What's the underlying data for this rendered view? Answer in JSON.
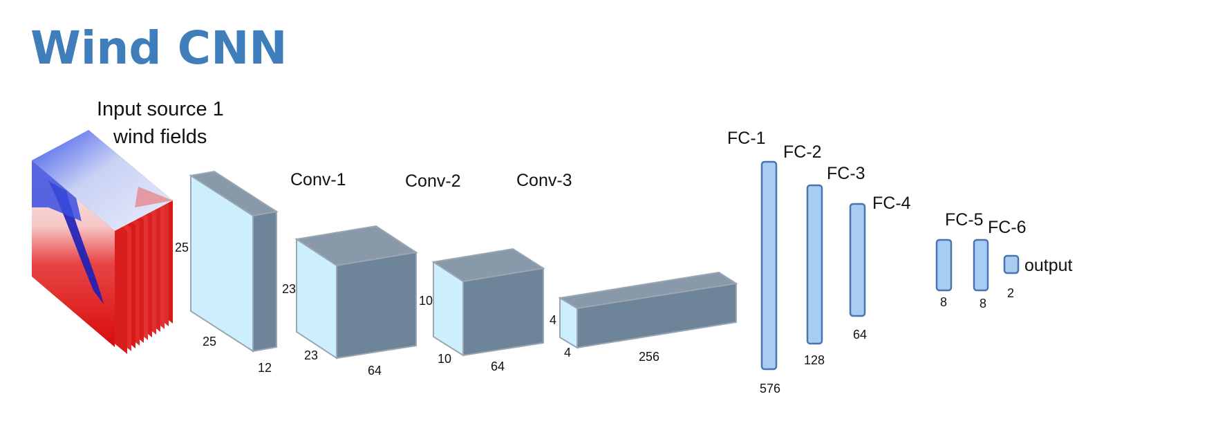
{
  "title": "Wind CNN",
  "input": {
    "label_line1": "Input source 1",
    "label_line2": "wind fields",
    "dim_height": "25",
    "dim_width": "25",
    "dim_depth": "12"
  },
  "conv_layers": [
    {
      "label": "Conv-1",
      "dim_height": "23",
      "dim_width": "23",
      "dim_depth": "64"
    },
    {
      "label": "Conv-2",
      "dim_height": "10",
      "dim_width": "10",
      "dim_depth": "64"
    },
    {
      "label": "Conv-3",
      "dim_height": "4",
      "dim_width": "4",
      "dim_depth": "256"
    }
  ],
  "fc_layers": [
    {
      "label": "FC-1",
      "size": "576"
    },
    {
      "label": "FC-2",
      "size": "128"
    },
    {
      "label": "FC-3",
      "size": "64"
    },
    {
      "label": "FC-4",
      "size": ""
    },
    {
      "label": "FC-5",
      "size": "8"
    },
    {
      "label": "FC-6",
      "size": "8"
    }
  ],
  "output": {
    "label": "output",
    "size": "2"
  },
  "colors": {
    "title": "#3f7dbb",
    "block_front": "#cdeefc",
    "block_top": "#8899a9",
    "block_side": "#6e8499",
    "block_edge": "#9aa6b2",
    "fc_fill": "#a9cdf2",
    "fc_stroke": "#4a74ad"
  }
}
